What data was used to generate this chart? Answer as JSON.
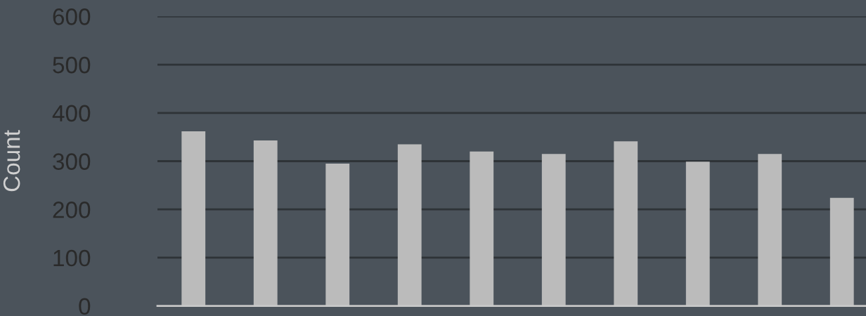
{
  "chart_data": {
    "type": "bar",
    "ylabel": "Count",
    "categories": [
      null,
      null,
      null,
      null,
      null,
      null,
      null,
      null,
      null,
      null
    ],
    "values": [
      362,
      343,
      295,
      335,
      320,
      315,
      341,
      299,
      315,
      224
    ],
    "color": "#bbbbbb",
    "ylim": [
      0,
      600
    ],
    "yticks": [
      0,
      100,
      200,
      300,
      400,
      500,
      600
    ],
    "grid": "y"
  }
}
